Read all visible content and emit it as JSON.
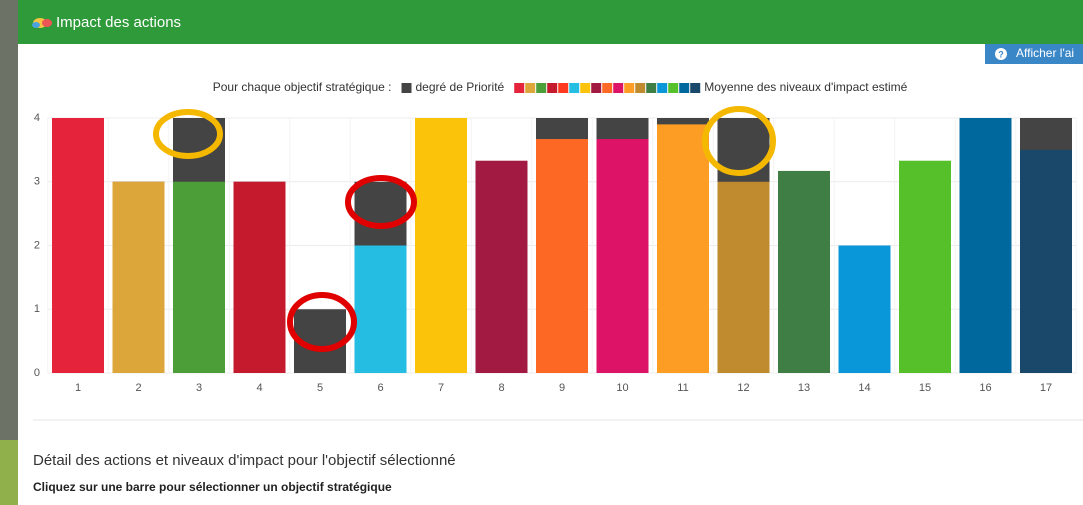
{
  "header": {
    "title": "Impact des actions",
    "help_button": "Afficher l'ai"
  },
  "chart_data": {
    "type": "bar",
    "overlap": true,
    "legend": {
      "prefix": "Pour chaque objectif stratégique :"
    },
    "categories": [
      "1",
      "2",
      "3",
      "4",
      "5",
      "6",
      "7",
      "8",
      "9",
      "10",
      "11",
      "12",
      "13",
      "14",
      "15",
      "16",
      "17"
    ],
    "series": [
      {
        "name": "degré de Priorité",
        "color": "#444444",
        "values": [
          4,
          3,
          4,
          3,
          1,
          3,
          4,
          3,
          4,
          4,
          4,
          4,
          3,
          2,
          3,
          4,
          4
        ]
      },
      {
        "name": "Moyenne des niveaux d'impact estimé",
        "colors": [
          "#e5243b",
          "#dda63a",
          "#4c9f38",
          "#c5192d",
          "#ff3a21",
          "#26bde2",
          "#fcc30b",
          "#a21942",
          "#fd6925",
          "#dd1367",
          "#fd9d24",
          "#bf8b2e",
          "#3f7e44",
          "#0a97d9",
          "#56c02b",
          "#00689d",
          "#19486a"
        ],
        "values": [
          4,
          3,
          3,
          3,
          0,
          2,
          4,
          3.33,
          3.67,
          3.67,
          3.9,
          3,
          3.17,
          2,
          3.33,
          4,
          3.5
        ]
      }
    ],
    "ylim": [
      0,
      4
    ],
    "yticks": [
      0,
      1,
      2,
      3,
      4
    ],
    "grid": true
  },
  "detail": {
    "title": "Détail des actions et niveaux d'impact pour l'objectif sélectionné",
    "instruction": "Cliquez sur une barre pour sélectionner un objectif stratégique"
  }
}
